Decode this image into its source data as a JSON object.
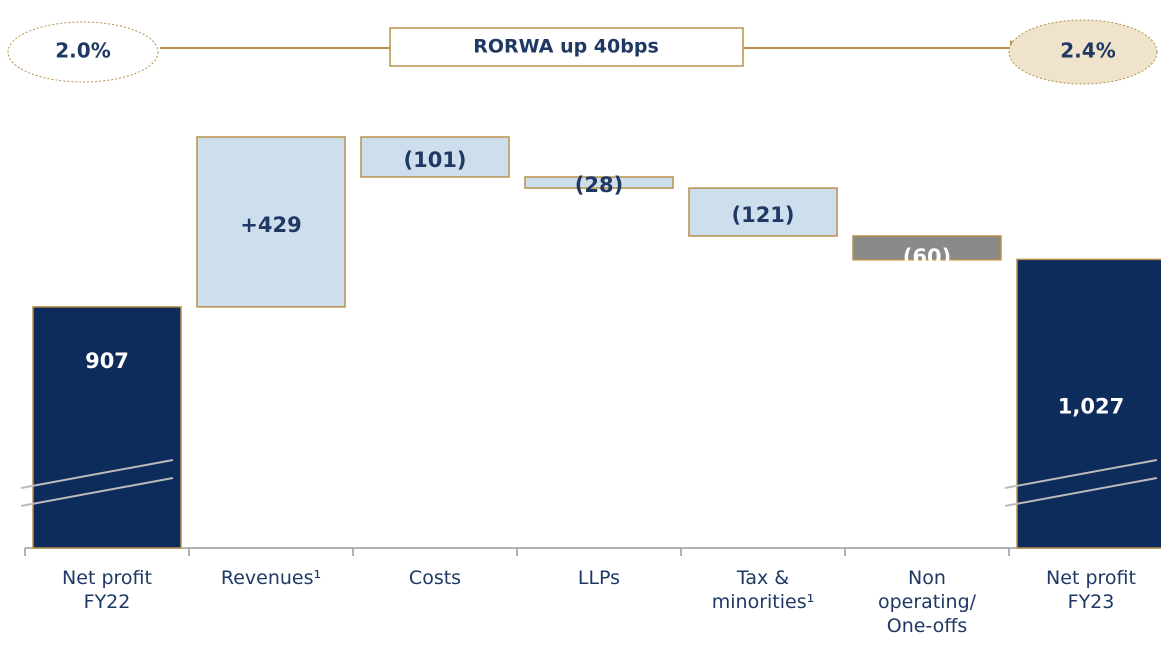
{
  "annotations": {
    "start": "2.0%",
    "label": "RORWA up 40bps",
    "end": "2.4%"
  },
  "chart_data": {
    "type": "waterfall",
    "categories": [
      "Net profit FY22",
      "Revenues¹",
      "Costs",
      "LLPs",
      "Tax & minorities¹",
      "Non operating/ One-offs",
      "Net profit FY23"
    ],
    "measures": [
      "total",
      "relative",
      "relative",
      "relative",
      "relative",
      "relative",
      "total"
    ],
    "values": [
      907,
      429,
      -101,
      -28,
      -121,
      -60,
      1027
    ],
    "value_labels": [
      "907",
      "+429",
      "(101)",
      "(28)",
      "(121)",
      "(60)",
      "1,027"
    ],
    "colors": [
      "#0d2c5c",
      "#cddfec",
      "#cddfec",
      "#cddfec",
      "#cddfec",
      "#8a8a8a",
      "#0d2c5c"
    ],
    "border_color": "#b8914a",
    "axis_break": true
  }
}
